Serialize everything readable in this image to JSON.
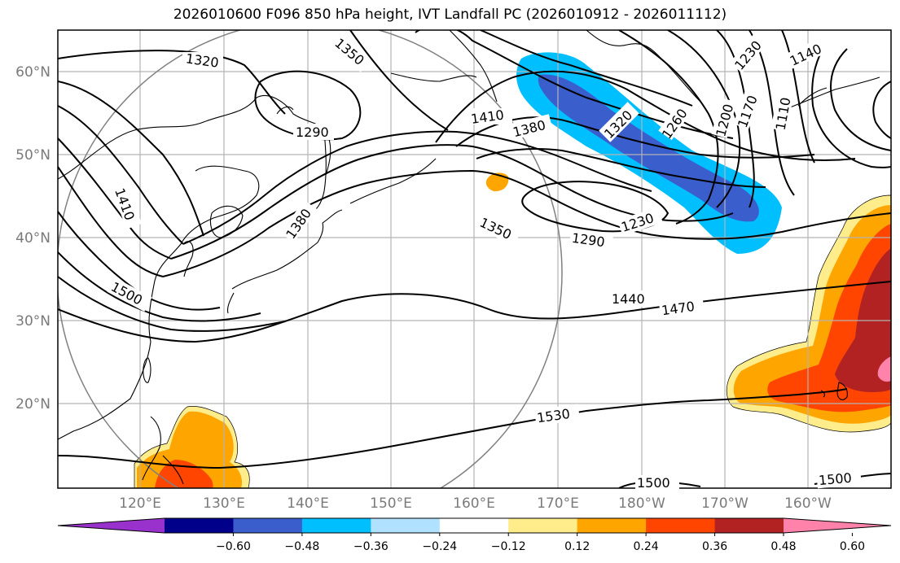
{
  "title": "2026010600 F096 850 hPa height, IVT Landfall PC (2026010912 - 2026011112)",
  "axes": {
    "lon_labels": [
      "120°E",
      "130°E",
      "140°E",
      "150°E",
      "160°E",
      "170°E",
      "180°W",
      "170°W",
      "160°W"
    ],
    "lat_labels": [
      "60°N",
      "50°N",
      "40°N",
      "30°N",
      "20°N"
    ],
    "grid": true
  },
  "contours": {
    "variable": "850 hPa height",
    "labels": [
      "1320",
      "1350",
      "1290",
      "1410",
      "1380",
      "1320",
      "1260",
      "1230",
      "1200",
      "1170",
      "1140",
      "1110",
      "1410",
      "1380",
      "1350",
      "1230",
      "1290",
      "1500",
      "1440",
      "1470",
      "1530",
      "1500",
      "1500"
    ]
  },
  "colorbar": {
    "ticks": [
      "−0.60",
      "−0.48",
      "−0.36",
      "−0.24",
      "−0.12",
      "0.12",
      "0.24",
      "0.36",
      "0.48",
      "0.60"
    ],
    "colors": [
      "#9932cc",
      "#00008b",
      "#3a5fcd",
      "#00bfff",
      "#b0e2ff",
      "#ffffff",
      "#ffec8b",
      "#ffa500",
      "#ff4500",
      "#b22222",
      "#ff82ab"
    ]
  },
  "shading_colors": {
    "neg_light": "#00bfff",
    "neg_dark": "#3a5fcd",
    "pos_yellow": "#ffec8b",
    "pos_orange": "#ffa500",
    "pos_red": "#ff4500",
    "pos_darkred": "#b22222",
    "pos_pink": "#ff82ab"
  }
}
